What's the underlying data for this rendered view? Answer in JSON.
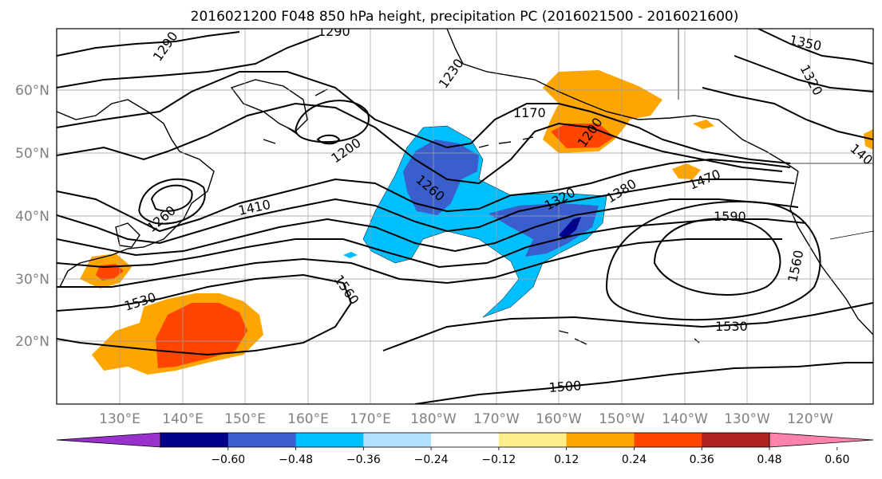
{
  "title": "2016021200 F048 850 hPa height, precipitation PC (2016021500 - 2016021600)",
  "map": {
    "lon_labels": [
      "130°E",
      "140°E",
      "150°E",
      "160°E",
      "170°E",
      "180°W",
      "170°W",
      "160°W",
      "150°W",
      "140°W",
      "130°W",
      "120°W"
    ],
    "lat_labels": [
      "60°N",
      "50°N",
      "40°N",
      "30°N",
      "20°N"
    ],
    "contour_labels": [
      "1290",
      "1290",
      "1350",
      "1320",
      "1230",
      "1170",
      "1200",
      "1200",
      "1260",
      "1260",
      "1410",
      "1320",
      "1380",
      "1470",
      "1590",
      "1530",
      "1560",
      "1560",
      "1530",
      "1500",
      "140"
    ],
    "gridlines": true
  },
  "colorbar": {
    "tick_labels": [
      "−0.60",
      "−0.48",
      "−0.36",
      "−0.24",
      "−0.12",
      "0.12",
      "0.24",
      "0.36",
      "0.48",
      "0.60"
    ],
    "colors": [
      "#9932CC",
      "#00008B",
      "#3A5FCD",
      "#00BFFF",
      "#B0E2FF",
      "#FFFFFF",
      "#FFEC8B",
      "#FFA500",
      "#FF4500",
      "#B22222",
      "#FF82AB"
    ]
  }
}
